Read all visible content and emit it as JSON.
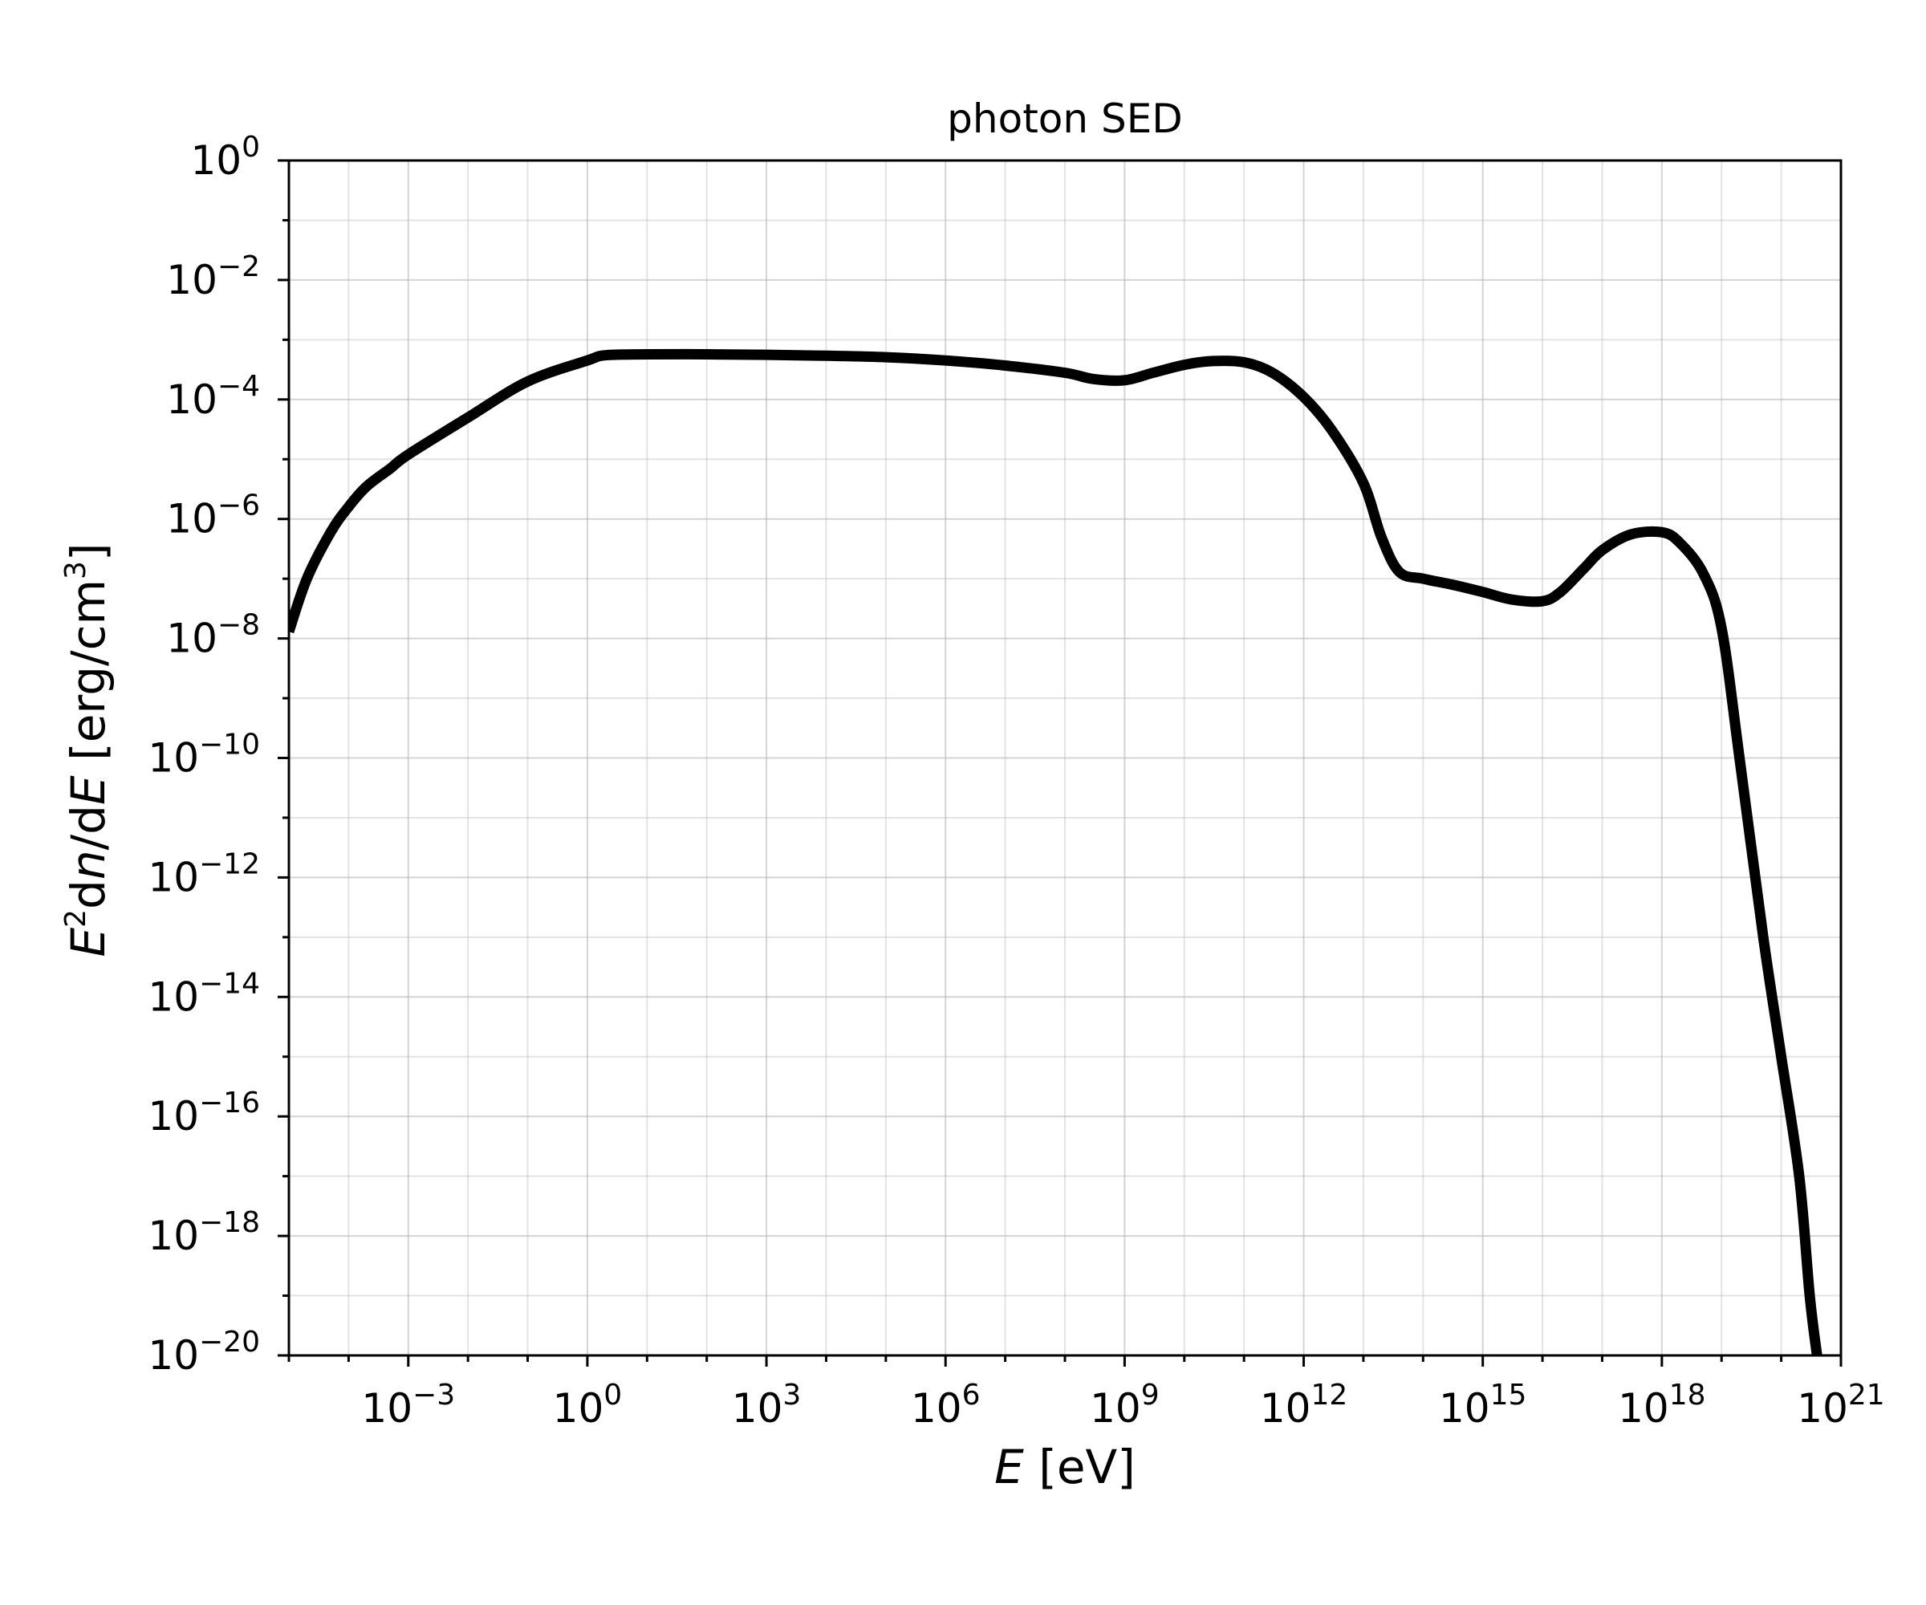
{
  "chart_data": {
    "type": "line",
    "title": "photon SED",
    "xlabel": {
      "prefix": "",
      "italic": "E",
      "suffix": " [eV]"
    },
    "ylabel": {
      "parts": [
        {
          "t": "E",
          "style": "italic"
        },
        {
          "t": "2",
          "style": "sup"
        },
        {
          "t": "d",
          "style": "normal"
        },
        {
          "t": "n",
          "style": "italic"
        },
        {
          "t": "/d",
          "style": "normal"
        },
        {
          "t": "E",
          "style": "italic"
        },
        {
          "t": " [erg/cm",
          "style": "normal"
        },
        {
          "t": "3",
          "style": "sup"
        },
        {
          "t": "]",
          "style": "normal"
        }
      ]
    },
    "x_scale": "log",
    "y_scale": "log",
    "xlim": [
      1e-05,
      1e+21
    ],
    "ylim": [
      1e-20,
      1.0
    ],
    "x_ticks": [
      {
        "base": "10",
        "exp": "−3",
        "value": 0.001
      },
      {
        "base": "10",
        "exp": "0",
        "value": 1
      },
      {
        "base": "10",
        "exp": "3",
        "value": 1000.0
      },
      {
        "base": "10",
        "exp": "6",
        "value": 1000000.0
      },
      {
        "base": "10",
        "exp": "9",
        "value": 1000000000.0
      },
      {
        "base": "10",
        "exp": "12",
        "value": 1000000000000.0
      },
      {
        "base": "10",
        "exp": "15",
        "value": 1000000000000000.0
      },
      {
        "base": "10",
        "exp": "18",
        "value": 1e+18
      },
      {
        "base": "10",
        "exp": "21",
        "value": 1e+21
      }
    ],
    "y_ticks": [
      {
        "base": "10",
        "exp": "0",
        "value": 1
      },
      {
        "base": "10",
        "exp": "−2",
        "value": 0.01
      },
      {
        "base": "10",
        "exp": "−4",
        "value": 0.0001
      },
      {
        "base": "10",
        "exp": "−6",
        "value": 1e-06
      },
      {
        "base": "10",
        "exp": "−8",
        "value": 1e-08
      },
      {
        "base": "10",
        "exp": "−10",
        "value": 1e-10
      },
      {
        "base": "10",
        "exp": "−12",
        "value": 1e-12
      },
      {
        "base": "10",
        "exp": "−14",
        "value": 1e-14
      },
      {
        "base": "10",
        "exp": "−16",
        "value": 1e-16
      },
      {
        "base": "10",
        "exp": "−18",
        "value": 1e-18
      },
      {
        "base": "10",
        "exp": "−20",
        "value": 1e-20
      }
    ],
    "grid": true,
    "legend": "none",
    "line_color": "#000000",
    "series": [
      {
        "x": [
          1e-05,
          2e-05,
          5e-05,
          0.0001,
          0.0002,
          0.0005,
          0.001,
          0.01,
          0.1,
          1,
          2,
          10.0,
          100.0,
          1000.0,
          10000.0,
          100000.0,
          1000000.0,
          10000000.0,
          100000000.0,
          300000000.0,
          1000000000.0,
          3000000000.0,
          10000000000.0,
          30000000000.0,
          100000000000.0,
          300000000000.0,
          1000000000000.0,
          3000000000000.0,
          10000000000000.0,
          20000000000000.0,
          40000000000000.0,
          100000000000000.0,
          300000000000000.0,
          1000000000000000.0,
          3000000000000000.0,
          1e+16,
          2e+16,
          5e+16,
          1e+17,
          3e+17,
          1e+18,
          2e+18,
          5e+18,
          1e+19,
          2e+19,
          5e+19,
          1e+20,
          2e+20,
          3e+20,
          3.98e+20
        ],
        "y": [
          1.3e-08,
          1e-07,
          6e-07,
          1.6e-06,
          3.5e-06,
          7e-06,
          1.2e-05,
          5e-05,
          0.0002,
          0.00045,
          0.00055,
          0.00057,
          0.00057,
          0.00056,
          0.00054,
          0.00051,
          0.00045,
          0.00037,
          0.00028,
          0.00022,
          0.00021,
          0.00028,
          0.00038,
          0.00044,
          0.00042,
          0.00028,
          0.00011,
          3e-05,
          4e-06,
          5e-07,
          1.3e-07,
          1e-07,
          8e-08,
          6e-08,
          4.5e-08,
          4.2e-08,
          6e-08,
          1.5e-07,
          3e-07,
          5.5e-07,
          6e-07,
          4e-07,
          1.2e-07,
          1.5e-08,
          1e-10,
          1e-13,
          1e-15,
          1e-17,
          1e-19,
          1e-20
        ]
      }
    ]
  }
}
